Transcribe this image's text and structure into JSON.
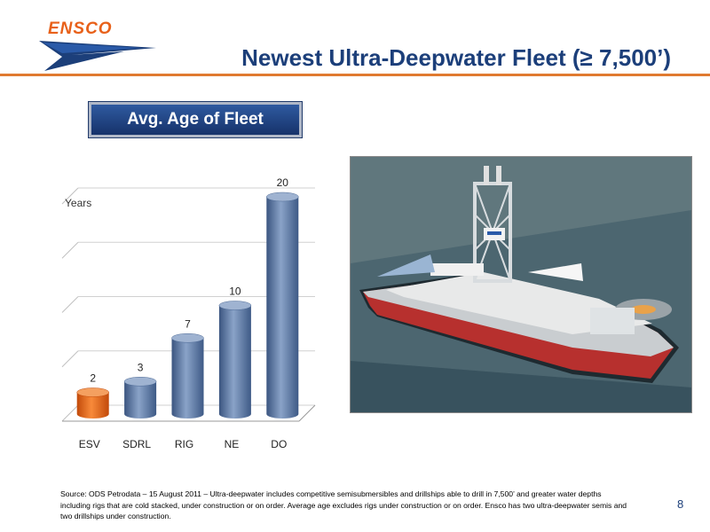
{
  "brand": {
    "logo_text": "ENSCO",
    "primary_color": "#1c3f7a",
    "accent_color": "#e07a30"
  },
  "page": {
    "title": "Newest Ultra-Deepwater Fleet (≥ 7,500’)",
    "number": "8"
  },
  "chart_header": "Avg. Age of Fleet",
  "chart_data": {
    "type": "bar",
    "style": "3d-cylinder",
    "categories": [
      "ESV",
      "SDRL",
      "RIG",
      "NE",
      "DO"
    ],
    "values": [
      2,
      3,
      7,
      10,
      20
    ],
    "data_labels": [
      "2",
      "3",
      "7",
      "10",
      "20"
    ],
    "ylabel": "Years",
    "ylim": [
      0,
      20
    ],
    "grid": true,
    "colors": [
      "#e8611a",
      "#5877a4",
      "#5877a4",
      "#5877a4",
      "#5877a4"
    ]
  },
  "photo": {
    "subject": "drillship-icon"
  },
  "footnote": "Source: ODS Petrodata – 15 August 2011 – Ultra-deepwater includes competitive semisubmersibles and drillships able to drill in 7,500’ and greater water depths including rigs that are cold stacked, under construction or on order. Average age excludes rigs under construction or on order. Ensco has two ultra-deepwater semis and two drillships  under construction."
}
